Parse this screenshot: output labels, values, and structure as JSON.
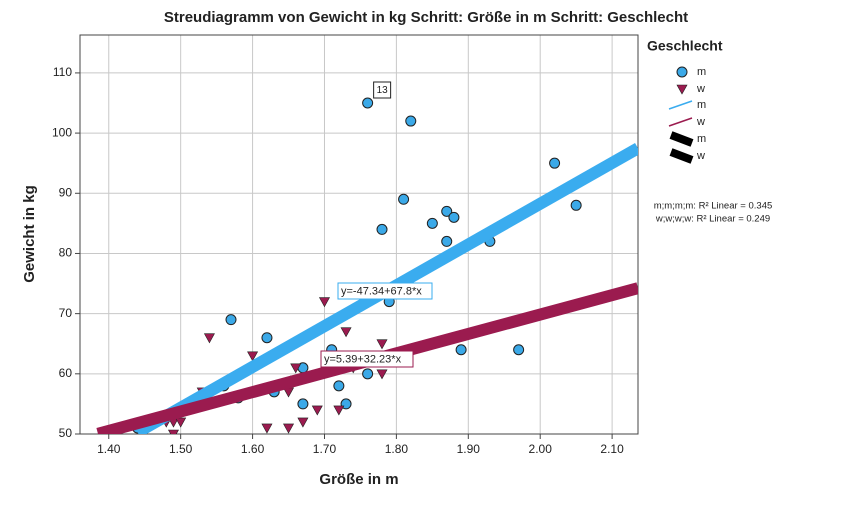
{
  "chart_data": {
    "type": "scatter",
    "title": "Streudiagramm von Gewicht in kg Schritt: Größe in m Schritt: Geschlecht",
    "x_label": "Größe in m",
    "y_label": "Gewicht in kg",
    "legend_title": "Geschlecht",
    "xlim": [
      1.36,
      2.136
    ],
    "ylim": [
      50,
      116.3
    ],
    "xticks": [
      {
        "value": 1.4,
        "label": "1.40"
      },
      {
        "value": 1.5,
        "label": "1.50"
      },
      {
        "value": 1.6,
        "label": "1.60"
      },
      {
        "value": 1.7,
        "label": "1.70"
      },
      {
        "value": 1.8,
        "label": "1.80"
      },
      {
        "value": 1.9,
        "label": "1.90"
      },
      {
        "value": 2.0,
        "label": "2.00"
      },
      {
        "value": 2.1,
        "label": "2.10"
      }
    ],
    "yticks": [
      50,
      60,
      70,
      80,
      90,
      100,
      110
    ],
    "grid": true,
    "annotations": [
      {
        "text": "13"
      }
    ],
    "series": [
      {
        "name": "m",
        "color": "#3ba9e8",
        "line_color": "#3aacef",
        "marker": "circle",
        "x": [
          1.76,
          1.82,
          2.02,
          1.81,
          2.05,
          1.87,
          1.88,
          1.85,
          1.78,
          1.87,
          1.93,
          1.79,
          1.57,
          1.62,
          1.71,
          1.89,
          1.97,
          1.67,
          1.72,
          1.76,
          1.56,
          1.63,
          1.58,
          1.67,
          1.73,
          1.44
        ],
        "values": [
          105,
          102,
          95,
          89,
          88,
          87,
          86,
          85,
          84,
          82,
          82,
          72,
          69,
          66,
          64,
          64,
          64,
          61,
          58,
          60,
          58,
          57,
          56,
          55,
          55,
          51
        ],
        "fit": {
          "label": "y=-47.34+67.8*x",
          "intercept": -47.34,
          "slope": 67.8,
          "xrange": [
            1.44,
            2.136
          ]
        },
        "r2_text": "m;m;m;m: R² Linear = 0.345"
      },
      {
        "name": "w",
        "color": "#9b1b4f",
        "line_color": "#9b1b4f",
        "marker": "triangle",
        "x": [
          1.54,
          1.6,
          1.7,
          1.73,
          1.78,
          1.66,
          1.66,
          1.72,
          1.69,
          1.65,
          1.62,
          1.65,
          1.67,
          1.48,
          1.49,
          1.5,
          1.49,
          1.53,
          1.78,
          1.74
        ],
        "values": [
          66,
          63,
          72,
          67,
          65,
          61,
          59,
          54,
          54,
          57,
          51,
          51,
          52,
          52,
          52,
          52,
          50,
          57,
          60,
          61
        ],
        "fit": {
          "label": "y=5.39+32.23*x",
          "intercept": 5.39,
          "slope": 32.23,
          "xrange": [
            1.385,
            2.136
          ]
        },
        "r2_text": "w;w;w;w: R² Linear = 0.249"
      }
    ]
  }
}
